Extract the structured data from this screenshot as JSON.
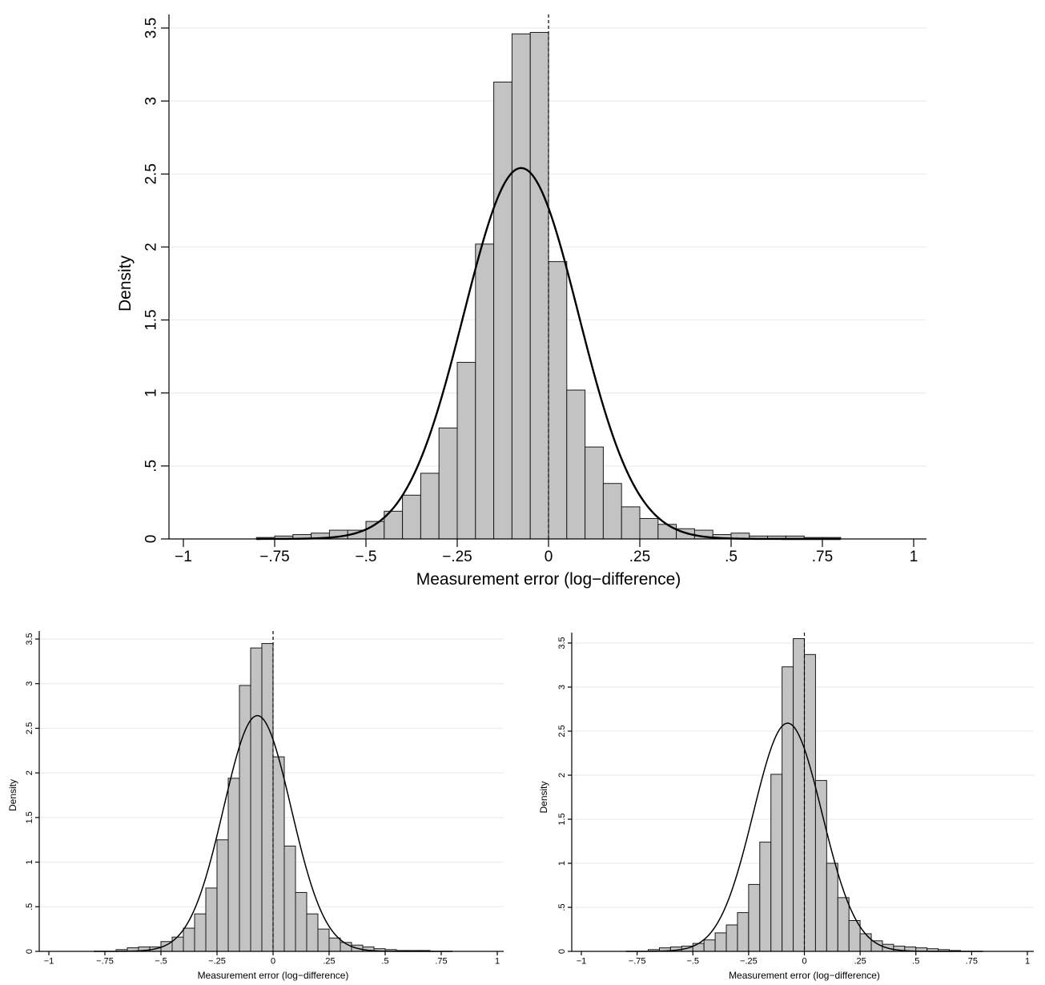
{
  "chart_data": [
    {
      "type": "bar",
      "panel": "top",
      "title": "",
      "xlabel": "Measurement error (log−difference)",
      "ylabel": "Density",
      "xlim": [
        -1,
        1
      ],
      "ylim": [
        0,
        3.5
      ],
      "xticks": [
        -1,
        -0.75,
        -0.5,
        -0.25,
        0,
        0.25,
        0.5,
        0.75,
        1
      ],
      "xtick_labels": [
        "−1",
        "−.75",
        "−.5",
        "−.25",
        "0",
        ".25",
        ".5",
        ".75",
        "1"
      ],
      "yticks": [
        0,
        0.5,
        1,
        1.5,
        2,
        2.5,
        3,
        3.5
      ],
      "ytick_labels": [
        "0",
        ".5",
        "1",
        "1.5",
        "2",
        "2.5",
        "3",
        "3.5"
      ],
      "bin_start": -0.8,
      "bin_width": 0.05,
      "values": [
        0.01,
        0.02,
        0.03,
        0.04,
        0.06,
        0.06,
        0.12,
        0.19,
        0.3,
        0.45,
        0.76,
        1.21,
        2.02,
        3.13,
        3.46,
        3.47,
        1.9,
        1.02,
        0.63,
        0.38,
        0.22,
        0.14,
        0.1,
        0.07,
        0.06,
        0.03,
        0.04,
        0.02,
        0.02,
        0.02,
        0.01,
        0.01
      ],
      "normal_curve": {
        "mean": -0.075,
        "sd": 0.157
      },
      "reference_line_x": 0,
      "grid": true
    },
    {
      "type": "bar",
      "panel": "bottom-left",
      "title": "",
      "xlabel": "Measurement error (log−difference)",
      "ylabel": "Density",
      "xlim": [
        -1,
        1
      ],
      "ylim": [
        0,
        3.5
      ],
      "xticks": [
        -1,
        -0.75,
        -0.5,
        -0.25,
        0,
        0.25,
        0.5,
        0.75,
        1
      ],
      "xtick_labels": [
        "−1",
        "−.75",
        "−.5",
        "−.25",
        "0",
        ".25",
        ".5",
        ".75",
        "1"
      ],
      "yticks": [
        0,
        0.5,
        1,
        1.5,
        2,
        2.5,
        3,
        3.5
      ],
      "ytick_labels": [
        "0",
        ".5",
        "1",
        "1.5",
        "2",
        "2.5",
        "3",
        "3.5"
      ],
      "bin_start": -0.7,
      "bin_width": 0.05,
      "values": [
        0.02,
        0.04,
        0.05,
        0.05,
        0.11,
        0.16,
        0.26,
        0.42,
        0.71,
        1.25,
        1.94,
        2.98,
        3.4,
        3.45,
        2.18,
        1.18,
        0.66,
        0.42,
        0.25,
        0.15,
        0.1,
        0.07,
        0.05,
        0.03,
        0.02,
        0.01,
        0.01,
        0.01
      ],
      "normal_curve": {
        "mean": -0.07,
        "sd": 0.151
      },
      "reference_line_x": 0,
      "grid": true
    },
    {
      "type": "bar",
      "panel": "bottom-right",
      "title": "",
      "xlabel": "Measurement error (log−difference)",
      "ylabel": "Density",
      "xlim": [
        -1,
        1
      ],
      "ylim": [
        0,
        3.5
      ],
      "xticks": [
        -1,
        -0.75,
        -0.5,
        -0.25,
        0,
        0.25,
        0.5,
        0.75,
        1
      ],
      "xtick_labels": [
        "−1",
        "−.75",
        "−.5",
        "−.25",
        "0",
        ".25",
        ".5",
        ".75",
        "1"
      ],
      "yticks": [
        0,
        0.5,
        1,
        1.5,
        2,
        2.5,
        3,
        3.5
      ],
      "ytick_labels": [
        "0",
        ".5",
        "1",
        "1.5",
        "2",
        "2.5",
        "3",
        "3.5"
      ],
      "bin_start": -0.7,
      "bin_width": 0.05,
      "values": [
        0.02,
        0.04,
        0.05,
        0.06,
        0.09,
        0.13,
        0.21,
        0.3,
        0.44,
        0.76,
        1.24,
        2.01,
        3.23,
        3.55,
        3.37,
        1.94,
        1.0,
        0.61,
        0.35,
        0.2,
        0.12,
        0.08,
        0.06,
        0.05,
        0.04,
        0.03,
        0.02,
        0.01
      ],
      "normal_curve": {
        "mean": -0.075,
        "sd": 0.154
      },
      "reference_line_x": 0,
      "grid": true
    }
  ]
}
